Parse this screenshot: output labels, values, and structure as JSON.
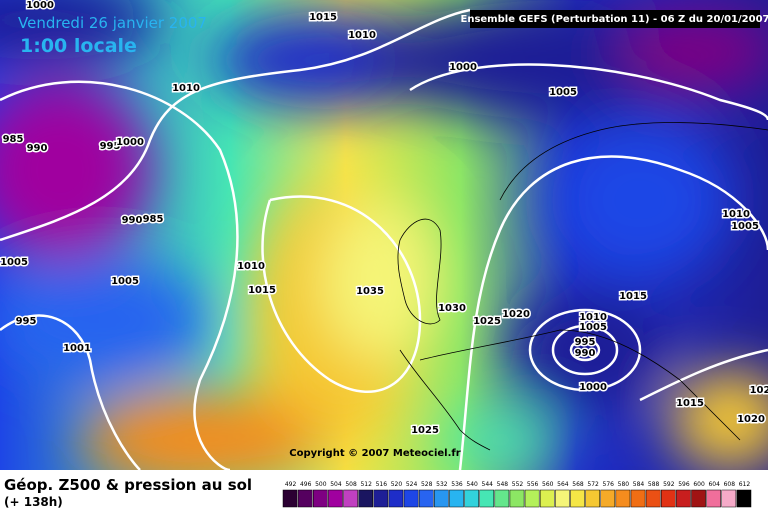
{
  "header": {
    "date": "Vendredi 26 janvier 2007",
    "time": "1:00 locale",
    "model": "Ensemble GEFS (Perturbation 11)  -  06 Z du 20/01/2007"
  },
  "copyright": "Copyright © 2007 Meteociel.fr",
  "footer": {
    "title": "Géop. Z500 & pression au sol",
    "lead": "(+ 138h)"
  },
  "isobar_labels": [
    "1000",
    "1015",
    "1010",
    "1000",
    "1005",
    "1010",
    "985",
    "990",
    "995",
    "1000",
    "990",
    "985",
    "1005",
    "1010",
    "1015",
    "1035",
    "1005",
    "995",
    "1001",
    "1030",
    "1025",
    "1020",
    "1015",
    "1010",
    "1005",
    "995",
    "990",
    "1000",
    "1015",
    "1010",
    "1005",
    "1025",
    "1020",
    "102"
  ],
  "colorbar": {
    "values": [
      492,
      496,
      500,
      504,
      508,
      512,
      516,
      520,
      524,
      528,
      532,
      536,
      540,
      544,
      548,
      552,
      556,
      560,
      564,
      568,
      572,
      576,
      580,
      584,
      588,
      592,
      596,
      600,
      604,
      608,
      612
    ],
    "colors": [
      "#2b0032",
      "#55005f",
      "#7e0082",
      "#a0009f",
      "#c040c0",
      "#1a1560",
      "#1e1e96",
      "#1e2dc8",
      "#1e46e6",
      "#2864f0",
      "#2896f0",
      "#28b4f0",
      "#32d2dc",
      "#46e6b4",
      "#64e68c",
      "#8ce664",
      "#b4f05a",
      "#dcf050",
      "#f5f578",
      "#f5e646",
      "#f5c832",
      "#f5aa28",
      "#f58c1e",
      "#f06e14",
      "#eb5014",
      "#e13214",
      "#c81e1e",
      "#a01414",
      "#f06e9b",
      "#f5aac8",
      "#000000"
    ]
  }
}
